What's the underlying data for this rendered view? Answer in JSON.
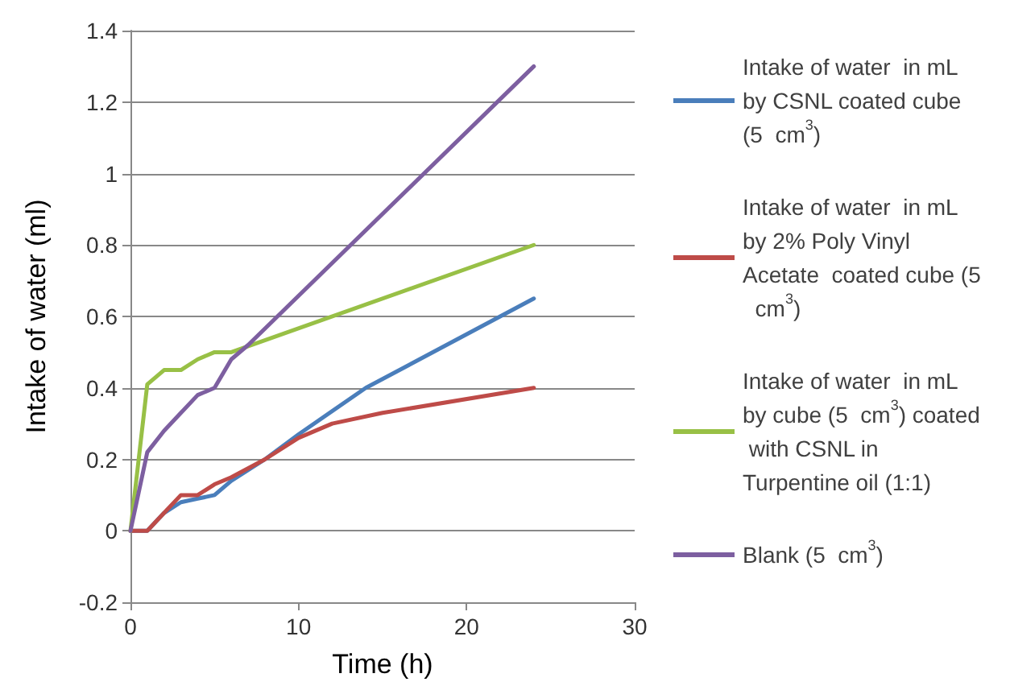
{
  "chart_data": {
    "type": "line",
    "xlabel": "Time (h)",
    "ylabel": "Intake of water (ml)",
    "xlim": [
      0,
      30
    ],
    "xticks": [
      0,
      10,
      20,
      30
    ],
    "ylim": [
      -0.2,
      1.4
    ],
    "yticks": [
      -0.2,
      0,
      0.2,
      0.4,
      0.6,
      0.8,
      1,
      1.2,
      1.4
    ],
    "grid": "y",
    "legend": "right",
    "marker": "none",
    "line_style": "solid",
    "series": [
      {
        "name": "Intake of water  in mL by CSNL coated cube (5  cm$^{3}$)",
        "color": "#4a7ebb",
        "x": [
          0,
          1,
          2,
          3,
          4,
          5,
          6,
          8,
          10,
          14,
          24
        ],
        "values": [
          0,
          0,
          0.05,
          0.08,
          0.09,
          0.1,
          0.14,
          0.2,
          0.27,
          0.4,
          0.65
        ]
      },
      {
        "name": "Intake of water  in mL by 2% Poly Vinyl Acetate  coated cube (5  cm$^{3}$)",
        "color": "#be4b48",
        "x": [
          0,
          1,
          2,
          3,
          4,
          5,
          6,
          8,
          10,
          12,
          15,
          24
        ],
        "values": [
          0,
          0,
          0.05,
          0.1,
          0.1,
          0.13,
          0.15,
          0.2,
          0.26,
          0.3,
          0.33,
          0.4
        ]
      },
      {
        "name": "Intake of water  in mL by cube (5  cm$^{3}$) coated with CSNL in Turpentine oil (1:1)",
        "color": "#98c046",
        "x": [
          0,
          1,
          2,
          3,
          4,
          5,
          6,
          24
        ],
        "values": [
          0,
          0.41,
          0.45,
          0.45,
          0.48,
          0.5,
          0.5,
          0.8
        ]
      },
      {
        "name": "Blank (5  cm$^{3}$)",
        "color": "#7d5fa0",
        "x": [
          0,
          1,
          2,
          3,
          4,
          5,
          6,
          7,
          24
        ],
        "values": [
          0,
          0.22,
          0.28,
          0.33,
          0.38,
          0.4,
          0.48,
          0.52,
          1.3
        ]
      }
    ]
  }
}
